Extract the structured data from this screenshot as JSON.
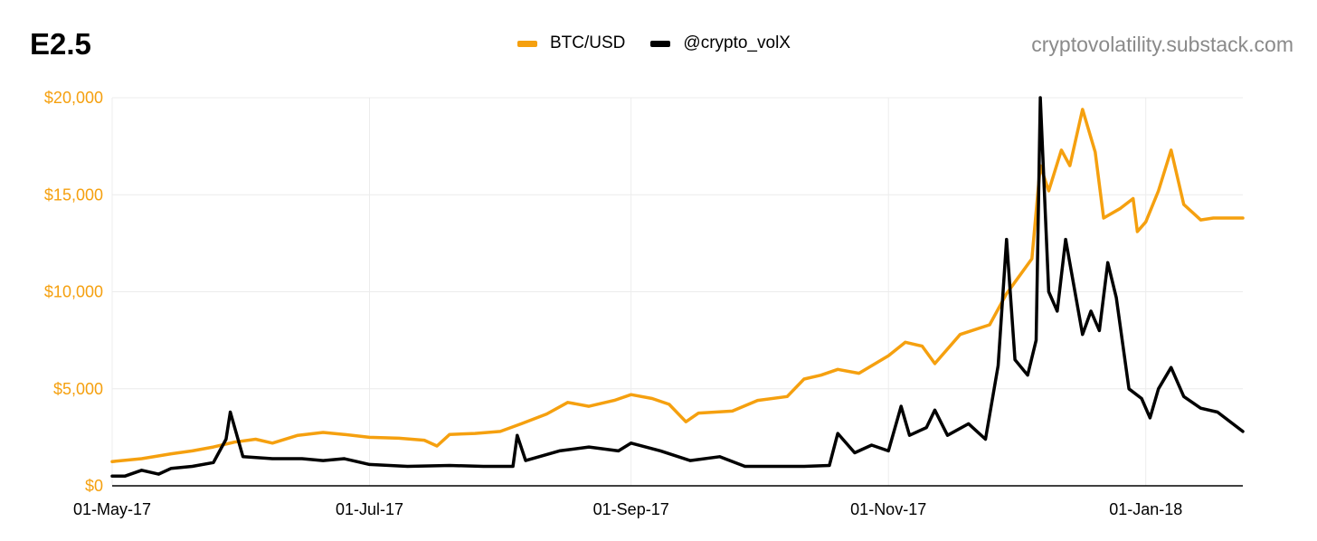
{
  "header": {
    "chart_label": "E2.5",
    "source": "cryptovolatility.substack.com"
  },
  "colors": {
    "btc": "#f5a00f",
    "vol": "#000000",
    "grid": "#ececec",
    "axis": "#000000"
  },
  "chart_data": {
    "type": "line",
    "title": "E2.5",
    "xlabel": "",
    "ylabel": "",
    "xlim": [
      "2017-05-01",
      "2018-01-24"
    ],
    "ylim": [
      0,
      20000
    ],
    "yticks": [
      0,
      5000,
      10000,
      15000,
      20000
    ],
    "ytick_labels": [
      "$0",
      "$5,000",
      "$10,000",
      "$15,000",
      "$20,000"
    ],
    "xticks": [
      "2017-05-01",
      "2017-07-01",
      "2017-09-01",
      "2017-11-01",
      "2018-01-01"
    ],
    "xtick_labels": [
      "01-May-17",
      "01-Jul-17",
      "01-Sep-17",
      "01-Nov-17",
      "01-Jan-18"
    ],
    "grid": true,
    "legend_position": "top-center",
    "series": [
      {
        "name": "BTC/USD",
        "color": "#f5a00f",
        "points": [
          [
            "2017-05-01",
            1250
          ],
          [
            "2017-05-08",
            1400
          ],
          [
            "2017-05-15",
            1650
          ],
          [
            "2017-05-20",
            1800
          ],
          [
            "2017-05-25",
            2000
          ],
          [
            "2017-05-30",
            2250
          ],
          [
            "2017-06-04",
            2400
          ],
          [
            "2017-06-08",
            2200
          ],
          [
            "2017-06-14",
            2600
          ],
          [
            "2017-06-20",
            2750
          ],
          [
            "2017-06-25",
            2650
          ],
          [
            "2017-07-01",
            2500
          ],
          [
            "2017-07-08",
            2450
          ],
          [
            "2017-07-14",
            2350
          ],
          [
            "2017-07-17",
            2050
          ],
          [
            "2017-07-20",
            2650
          ],
          [
            "2017-07-26",
            2700
          ],
          [
            "2017-08-01",
            2800
          ],
          [
            "2017-08-06",
            3200
          ],
          [
            "2017-08-12",
            3700
          ],
          [
            "2017-08-17",
            4300
          ],
          [
            "2017-08-22",
            4100
          ],
          [
            "2017-08-28",
            4400
          ],
          [
            "2017-09-01",
            4700
          ],
          [
            "2017-09-06",
            4500
          ],
          [
            "2017-09-10",
            4200
          ],
          [
            "2017-09-14",
            3300
          ],
          [
            "2017-09-17",
            3750
          ],
          [
            "2017-09-25",
            3850
          ],
          [
            "2017-10-01",
            4400
          ],
          [
            "2017-10-08",
            4600
          ],
          [
            "2017-10-12",
            5500
          ],
          [
            "2017-10-16",
            5700
          ],
          [
            "2017-10-20",
            6000
          ],
          [
            "2017-10-25",
            5800
          ],
          [
            "2017-11-01",
            6700
          ],
          [
            "2017-11-05",
            7400
          ],
          [
            "2017-11-09",
            7200
          ],
          [
            "2017-11-12",
            6300
          ],
          [
            "2017-11-18",
            7800
          ],
          [
            "2017-11-25",
            8300
          ],
          [
            "2017-11-29",
            9900
          ],
          [
            "2017-12-02",
            10800
          ],
          [
            "2017-12-05",
            11700
          ],
          [
            "2017-12-07",
            16500
          ],
          [
            "2017-12-09",
            15200
          ],
          [
            "2017-12-12",
            17300
          ],
          [
            "2017-12-14",
            16500
          ],
          [
            "2017-12-17",
            19400
          ],
          [
            "2017-12-20",
            17200
          ],
          [
            "2017-12-22",
            13800
          ],
          [
            "2017-12-26",
            14300
          ],
          [
            "2017-12-29",
            14800
          ],
          [
            "2017-12-30",
            13100
          ],
          [
            "2018-01-01",
            13600
          ],
          [
            "2018-01-04",
            15200
          ],
          [
            "2018-01-07",
            17300
          ],
          [
            "2018-01-10",
            14500
          ],
          [
            "2018-01-14",
            13700
          ],
          [
            "2018-01-17",
            13800
          ],
          [
            "2018-01-24",
            13800
          ]
        ]
      },
      {
        "name": "@crypto_volX",
        "color": "#000000",
        "points": [
          [
            "2017-05-01",
            500
          ],
          [
            "2017-05-04",
            500
          ],
          [
            "2017-05-08",
            800
          ],
          [
            "2017-05-12",
            600
          ],
          [
            "2017-05-15",
            900
          ],
          [
            "2017-05-20",
            1000
          ],
          [
            "2017-05-25",
            1200
          ],
          [
            "2017-05-28",
            2400
          ],
          [
            "2017-05-29",
            3800
          ],
          [
            "2017-06-01",
            1500
          ],
          [
            "2017-06-08",
            1400
          ],
          [
            "2017-06-15",
            1400
          ],
          [
            "2017-06-20",
            1300
          ],
          [
            "2017-06-25",
            1400
          ],
          [
            "2017-07-01",
            1100
          ],
          [
            "2017-07-10",
            1000
          ],
          [
            "2017-07-20",
            1050
          ],
          [
            "2017-07-28",
            1000
          ],
          [
            "2017-08-04",
            1000
          ],
          [
            "2017-08-05",
            2600
          ],
          [
            "2017-08-07",
            1300
          ],
          [
            "2017-08-15",
            1800
          ],
          [
            "2017-08-22",
            2000
          ],
          [
            "2017-08-29",
            1800
          ],
          [
            "2017-09-01",
            2200
          ],
          [
            "2017-09-08",
            1800
          ],
          [
            "2017-09-15",
            1300
          ],
          [
            "2017-09-22",
            1500
          ],
          [
            "2017-09-28",
            1000
          ],
          [
            "2017-10-05",
            1000
          ],
          [
            "2017-10-12",
            1000
          ],
          [
            "2017-10-18",
            1050
          ],
          [
            "2017-10-20",
            2700
          ],
          [
            "2017-10-24",
            1700
          ],
          [
            "2017-10-28",
            2100
          ],
          [
            "2017-11-01",
            1800
          ],
          [
            "2017-11-04",
            4100
          ],
          [
            "2017-11-06",
            2600
          ],
          [
            "2017-11-10",
            3000
          ],
          [
            "2017-11-12",
            3900
          ],
          [
            "2017-11-15",
            2600
          ],
          [
            "2017-11-20",
            3200
          ],
          [
            "2017-11-24",
            2400
          ],
          [
            "2017-11-27",
            6200
          ],
          [
            "2017-11-29",
            12700
          ],
          [
            "2017-12-01",
            6500
          ],
          [
            "2017-12-04",
            5700
          ],
          [
            "2017-12-06",
            7500
          ],
          [
            "2017-12-07",
            20000
          ],
          [
            "2017-12-09",
            10000
          ],
          [
            "2017-12-11",
            9000
          ],
          [
            "2017-12-13",
            12700
          ],
          [
            "2017-12-17",
            7800
          ],
          [
            "2017-12-19",
            9000
          ],
          [
            "2017-12-21",
            8000
          ],
          [
            "2017-12-23",
            11500
          ],
          [
            "2017-12-25",
            9700
          ],
          [
            "2017-12-28",
            5000
          ],
          [
            "2017-12-31",
            4500
          ],
          [
            "2018-01-02",
            3500
          ],
          [
            "2018-01-04",
            5000
          ],
          [
            "2018-01-07",
            6100
          ],
          [
            "2018-01-10",
            4600
          ],
          [
            "2018-01-14",
            4000
          ],
          [
            "2018-01-18",
            3800
          ],
          [
            "2018-01-24",
            2800
          ]
        ]
      }
    ]
  }
}
